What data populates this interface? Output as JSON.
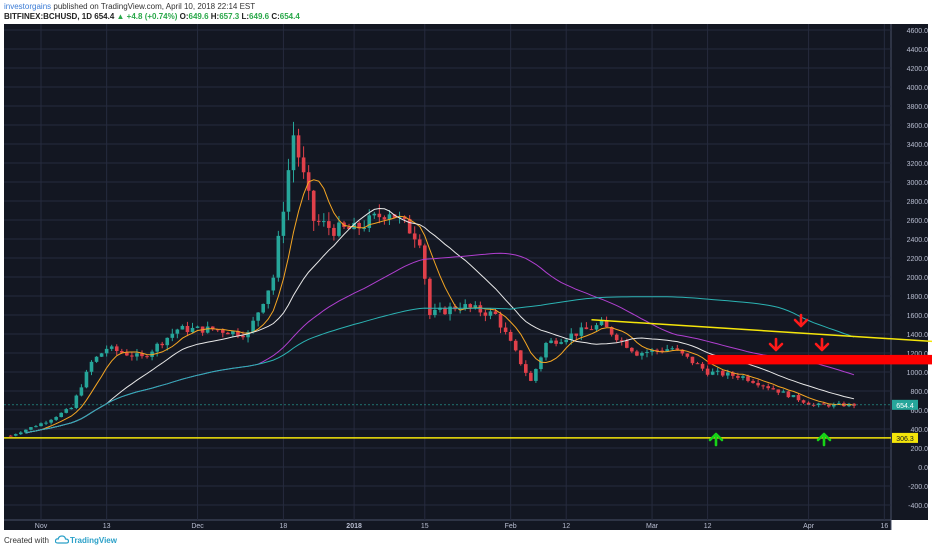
{
  "header": {
    "author": "investorgains",
    "published_text": "published on TradingView.com, April 10, 2018 22:14 EST",
    "symbol": "BITFINEX:BCHUSD, 1D",
    "last": "654.4",
    "change": "+4.8 (+0.74%)",
    "o_label": "O:",
    "o": "649.6",
    "h_label": "H:",
    "h": "657.3",
    "l_label": "L:",
    "l": "649.6",
    "c_label": "C:",
    "c": "654.4"
  },
  "footer": {
    "created_with": "Created with",
    "brand": "TradingView"
  },
  "colors": {
    "background": "#131722",
    "grid": "#262b3e",
    "up_candle": "#26a69a",
    "down_candle": "#e0404a",
    "trendline": "#f5e60a",
    "resistance_zone": "#ff0000",
    "down_arrow": "#ff1a1a",
    "up_arrow": "#17d317",
    "ma_fast": "#f5a623",
    "ma_mid": "#e8e8e8",
    "ma_slow": "#b03fd0",
    "ma_long": "#2bb3b3"
  },
  "chart_data": {
    "type": "candlestick",
    "title": "",
    "x_tick_labels": [
      "Nov",
      "13",
      "Dec",
      "18",
      "2018",
      "15",
      "Feb",
      "12",
      "Mar",
      "12",
      "Apr",
      "16",
      "May"
    ],
    "y_tick_labels": [
      "4600.0",
      "4400.0",
      "4200.0",
      "4000.0",
      "3800.0",
      "3600.0",
      "3400.0",
      "3200.0",
      "3000.0",
      "2800.0",
      "2600.0",
      "2400.0",
      "2200.0",
      "2000.0",
      "1800.0",
      "1600.0",
      "1400.0",
      "1200.0",
      "1000.0",
      "800.0",
      "600.0",
      "400.0",
      "200.0",
      "0.0",
      "-200.0",
      "-400.0"
    ],
    "ylim": [
      -500,
      4700
    ],
    "price_label": "654.4",
    "support_label": "306.3",
    "support_level": 306.3,
    "grid": true,
    "price_series_approx": [
      [
        "2017-10-25",
        330
      ],
      [
        "2017-11-01",
        480
      ],
      [
        "2017-11-06",
        620
      ],
      [
        "2017-11-10",
        1100
      ],
      [
        "2017-11-13",
        1250
      ],
      [
        "2017-11-20",
        1150
      ],
      [
        "2017-11-27",
        1450
      ],
      [
        "2017-12-04",
        1450
      ],
      [
        "2017-12-11",
        1400
      ],
      [
        "2017-12-16",
        2000
      ],
      [
        "2017-12-20",
        3500
      ],
      [
        "2017-12-24",
        2600
      ],
      [
        "2017-12-28",
        2500
      ],
      [
        "2018-01-01",
        2500
      ],
      [
        "2018-01-08",
        2700
      ],
      [
        "2018-01-14",
        2400
      ],
      [
        "2018-01-16",
        1600
      ],
      [
        "2018-01-22",
        1700
      ],
      [
        "2018-01-29",
        1600
      ],
      [
        "2018-02-05",
        900
      ],
      [
        "2018-02-08",
        1300
      ],
      [
        "2018-02-19",
        1500
      ],
      [
        "2018-02-26",
        1200
      ],
      [
        "2018-03-05",
        1250
      ],
      [
        "2018-03-12",
        1000
      ],
      [
        "2018-03-19",
        950
      ],
      [
        "2018-03-26",
        800
      ],
      [
        "2018-04-02",
        650
      ],
      [
        "2018-04-10",
        654.4
      ]
    ],
    "annotations": {
      "descending_trendline": {
        "from": [
          "2018-02-17",
          1550
        ],
        "to": [
          "2018-05-08",
          1280
        ]
      },
      "resistance_zone": {
        "from_date": "2018-03-12",
        "to_date": "2018-05-07",
        "low": 1080,
        "high": 1180
      },
      "down_arrows": 3,
      "up_arrows": 2
    }
  }
}
